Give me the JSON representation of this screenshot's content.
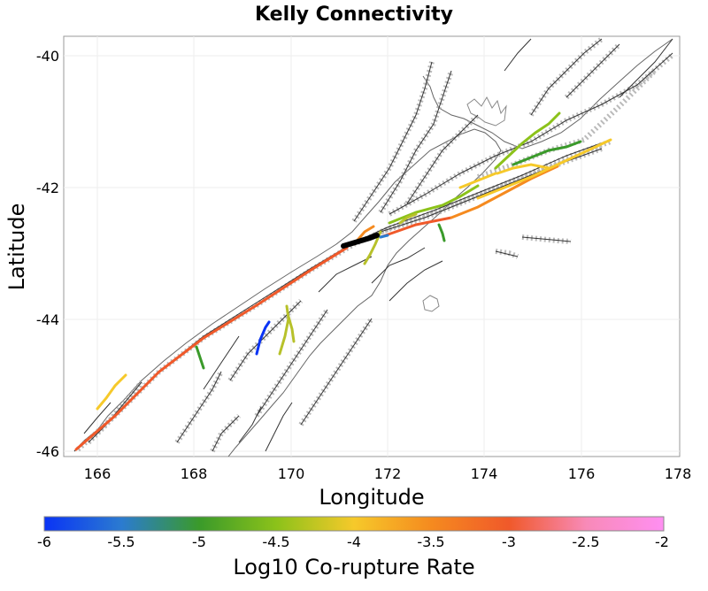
{
  "title": "Kelly Connectivity",
  "x_axis": {
    "label": "Longitude",
    "ticks": [
      "166",
      "168",
      "170",
      "172",
      "174",
      "176",
      "178"
    ]
  },
  "y_axis": {
    "label": "Latitude",
    "ticks": [
      "-40",
      "-42",
      "-44",
      "-46"
    ]
  },
  "colorbar": {
    "label": "Log10 Co-rupture Rate",
    "ticks": [
      "-6",
      "-5.5",
      "-5",
      "-4.5",
      "-4",
      "-3.5",
      "-3",
      "-2.5",
      "-2"
    ],
    "colors": [
      "#0a34f5",
      "#2b7bd0",
      "#3a9a2a",
      "#8cc21a",
      "#f6c92a",
      "#f58a1f",
      "#f0592a",
      "#f88ab8",
      "#ff8ff2"
    ]
  },
  "map_extent": {
    "lon_min": 165.3,
    "lon_max": 178.0,
    "lat_min": -46.1,
    "lat_max": -39.7
  },
  "colors": {
    "fault_trace": "#333333",
    "fault_surface": "#aaaaaa",
    "coastline": "#666666",
    "source_rupture": "#000000"
  }
}
